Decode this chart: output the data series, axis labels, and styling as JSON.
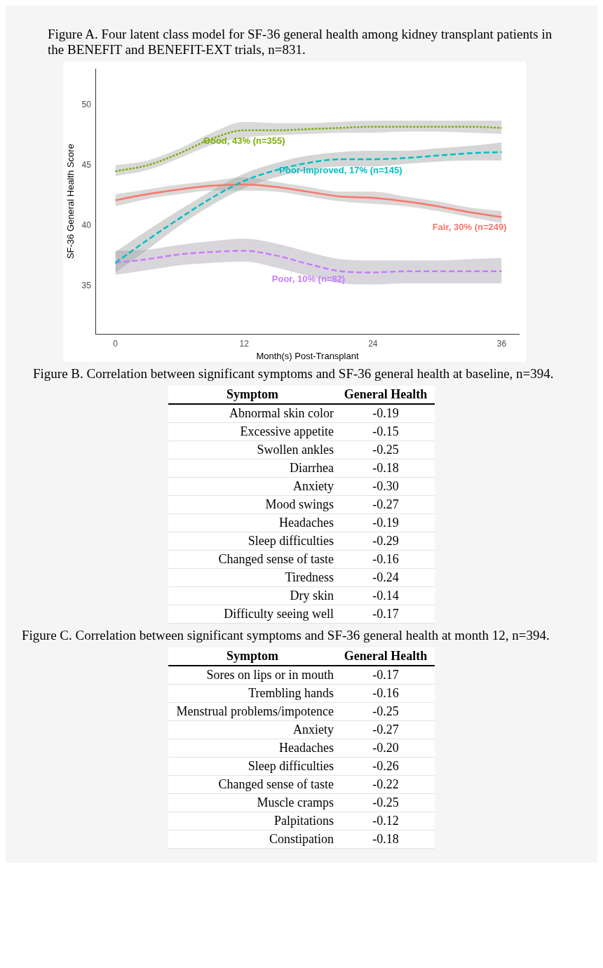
{
  "chart_data": [
    {
      "type": "line",
      "title": "Figure A. Four latent class model for SF-36 general health among kidney transplant patients in the BENEFIT and BENEFIT-EXT trials, n=831.",
      "xlabel": "Month(s) Post-Transplant",
      "ylabel": "SF-36 General Health Score",
      "x": [
        0,
        3,
        6,
        9,
        12,
        15,
        18,
        21,
        24,
        27,
        30,
        33,
        36
      ],
      "xlim": [
        -1.8,
        37.6
      ],
      "xticks": [
        0,
        12,
        24,
        36
      ],
      "ylim": [
        31,
        53
      ],
      "yticks": [
        35,
        40,
        45,
        50
      ],
      "grid": false,
      "legend": false,
      "marker": "none",
      "series": [
        {
          "name": "Good, 43% (n=355)",
          "color": "#7cae00",
          "line_style": "dotted",
          "values": [
            44.5,
            45.0,
            46.0,
            47.2,
            47.9,
            47.9,
            48.0,
            48.1,
            48.2,
            48.2,
            48.2,
            48.2,
            48.1
          ],
          "lower": [
            44.1,
            44.6,
            45.6,
            46.7,
            47.3,
            47.5,
            47.6,
            47.7,
            47.7,
            47.8,
            47.8,
            47.7,
            47.6
          ],
          "upper": [
            45.0,
            45.4,
            46.4,
            47.7,
            48.6,
            48.5,
            48.5,
            48.6,
            48.7,
            48.7,
            48.7,
            48.7,
            48.7
          ]
        },
        {
          "name": "Poor-Improved, 17% (n=145)",
          "color": "#00bfc4",
          "line_style": "dashed",
          "values": [
            36.9,
            38.8,
            40.6,
            42.3,
            43.7,
            44.6,
            45.2,
            45.5,
            45.5,
            45.6,
            45.8,
            46.0,
            46.1
          ],
          "lower": [
            36.1,
            38.0,
            40.0,
            41.7,
            43.1,
            44.0,
            44.6,
            44.9,
            44.9,
            45.1,
            45.3,
            45.4,
            45.4
          ],
          "upper": [
            37.8,
            39.6,
            41.3,
            42.9,
            44.3,
            45.2,
            45.8,
            46.1,
            46.2,
            46.2,
            46.4,
            46.6,
            46.9
          ]
        },
        {
          "name": "Fair, 30% (n=249)",
          "color": "#f8766d",
          "line_style": "solid",
          "values": [
            42.1,
            42.6,
            43.0,
            43.3,
            43.4,
            43.2,
            42.8,
            42.4,
            42.3,
            42.0,
            41.6,
            41.1,
            40.7
          ],
          "lower": [
            41.6,
            42.2,
            42.6,
            42.9,
            42.9,
            42.8,
            42.4,
            42.0,
            41.8,
            41.6,
            41.2,
            40.7,
            40.2
          ],
          "upper": [
            42.6,
            43.0,
            43.4,
            43.7,
            44.0,
            43.6,
            43.2,
            42.8,
            42.8,
            42.4,
            42.0,
            41.5,
            41.2
          ]
        },
        {
          "name": "Poor, 10% (n=82)",
          "color": "#c77cff",
          "line_style": "dashed",
          "values": [
            36.9,
            37.2,
            37.6,
            37.8,
            37.9,
            37.5,
            36.8,
            36.2,
            36.1,
            36.2,
            36.2,
            36.2,
            36.2
          ],
          "lower": [
            35.9,
            36.3,
            36.7,
            36.9,
            37.0,
            36.5,
            35.8,
            35.2,
            35.1,
            35.2,
            35.2,
            35.2,
            35.2
          ],
          "upper": [
            37.9,
            38.0,
            38.4,
            38.7,
            38.9,
            38.5,
            37.8,
            37.2,
            37.1,
            37.1,
            37.1,
            37.2,
            37.3
          ]
        }
      ]
    },
    {
      "type": "other",
      "title": "Figure B. Correlation between significant symptoms and SF-36 general health at baseline, n=394.",
      "xlabel": "Symptom",
      "ylabel": "General Health",
      "categories": [
        "Abnormal skin color",
        "Excessive appetite",
        "Swollen ankles",
        "Diarrhea",
        "Anxiety",
        "Mood swings",
        "Headaches",
        "Sleep difficulties",
        "Changed sense of taste",
        "Tiredness",
        "Dry skin",
        "Difficulty seeing well"
      ],
      "value_labels": [
        "-0.19",
        "-0.15",
        "-0.25",
        "-0.18",
        "-0.30",
        "-0.27",
        "-0.19",
        "-0.29",
        "-0.16",
        "-0.24",
        "-0.14",
        "-0.17"
      ]
    },
    {
      "type": "other",
      "title": "Figure C. Correlation between significant symptoms and SF-36 general health at month 12, n=394.",
      "xlabel": "Symptom",
      "ylabel": "General Health",
      "categories": [
        "Sores on lips or in mouth",
        "Trembling hands",
        "Menstrual problems/impotence",
        "Anxiety",
        "Headaches",
        "Sleep difficulties",
        "Changed sense of taste",
        "Muscle cramps",
        "Palpitations",
        "Constipation"
      ],
      "value_labels": [
        "-0.17",
        "-0.16",
        "-0.25",
        "-0.27",
        "-0.20",
        "-0.26",
        "-0.22",
        "-0.25",
        "-0.12",
        "-0.18"
      ]
    }
  ]
}
